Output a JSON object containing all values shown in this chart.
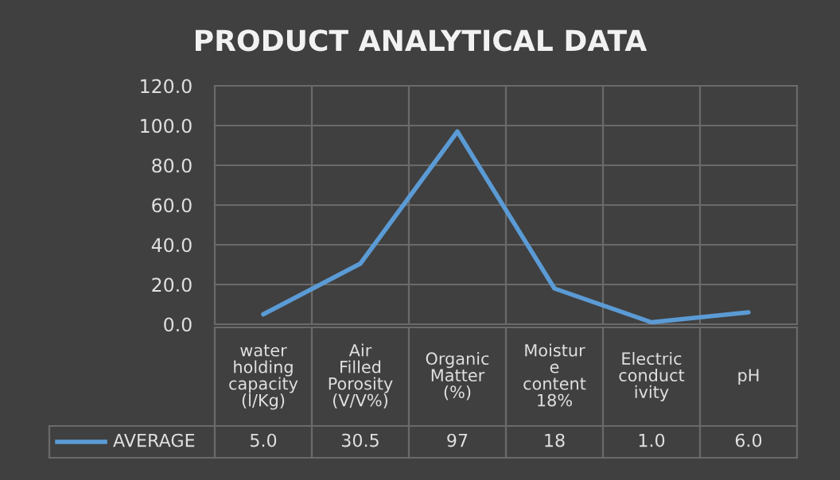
{
  "chart_data": {
    "type": "line",
    "title": "PRODUCT ANALYTICAL DATA",
    "categories": [
      "water\nholding\ncapacity\n(l/Kg)",
      "Air\nFilled\nPorosity\n(V/V%)",
      "Organic\nMatter\n(%)",
      "Moistur\ne\ncontent\n18%",
      "Electric\nconduct\nivity",
      "pH"
    ],
    "series": [
      {
        "name": "AVERAGE",
        "color": "#5b9bd5",
        "values": [
          5.0,
          30.5,
          97,
          18,
          1.0,
          6.0
        ],
        "value_labels": [
          "5.0",
          "30.5",
          "97",
          "18",
          "1.0",
          "6.0"
        ]
      }
    ],
    "ylim": [
      0,
      120
    ],
    "yticks": [
      {
        "value": 0,
        "label": "0.0"
      },
      {
        "value": 20,
        "label": "20.0"
      },
      {
        "value": 40,
        "label": "40.0"
      },
      {
        "value": 60,
        "label": "60.0"
      },
      {
        "value": 80,
        "label": "80.0"
      },
      {
        "value": 100,
        "label": "100.0"
      },
      {
        "value": 120,
        "label": "120.0"
      }
    ],
    "grid": true,
    "legend": "bottom",
    "line_style": "solid"
  }
}
